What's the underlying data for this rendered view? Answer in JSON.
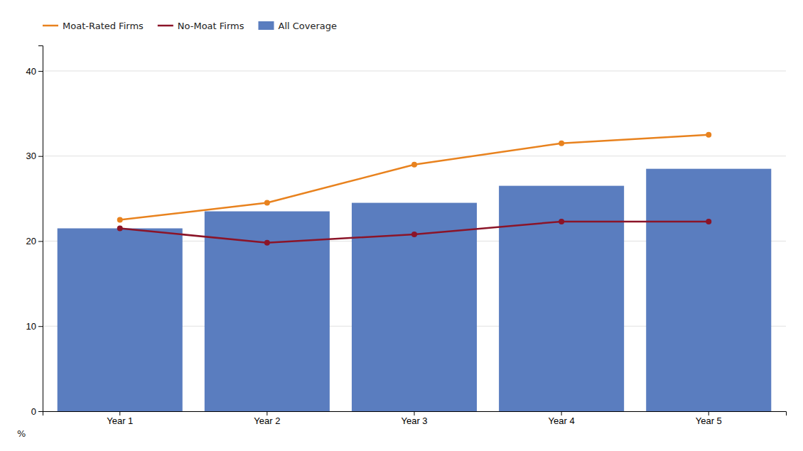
{
  "chart_data": {
    "type": "bar",
    "categories": [
      "Year 1",
      "Year 2",
      "Year 3",
      "Year 4",
      "Year 5"
    ],
    "series": [
      {
        "name": "Moat-Rated Firms",
        "type": "line",
        "color": "#e8821e",
        "marker": "circle",
        "values": [
          22.5,
          24.5,
          29.0,
          31.5,
          32.5
        ]
      },
      {
        "name": "No-Moat Firms",
        "type": "line",
        "color": "#8b1428",
        "marker": "circle",
        "values": [
          21.5,
          19.8,
          20.8,
          22.3,
          22.3
        ]
      },
      {
        "name": "All Coverage",
        "type": "bar",
        "color": "#5a7dbf",
        "values": [
          21.5,
          23.5,
          24.5,
          26.5,
          28.5
        ]
      }
    ],
    "ylabel": "%",
    "ylim": [
      0,
      43
    ],
    "yticks": [
      0,
      10,
      20,
      30,
      40
    ],
    "grid": true,
    "legend": "top-left"
  }
}
